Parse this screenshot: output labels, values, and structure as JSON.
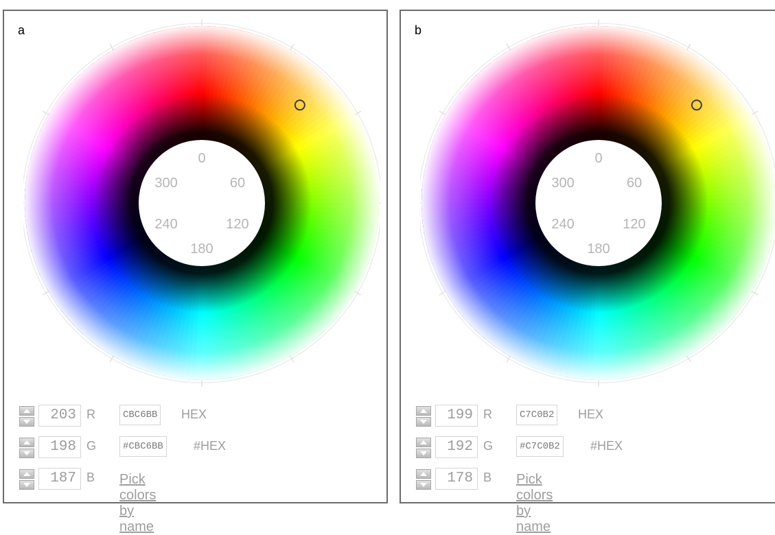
{
  "panels": [
    {
      "label": "a",
      "wheel": {
        "marker_hue_deg": 45,
        "degree_labels": [
          "0",
          "60",
          "120",
          "180",
          "240",
          "300"
        ]
      },
      "rows": [
        {
          "value": "203",
          "channel": "R",
          "hex_value": "CBC6BB",
          "hex_label": "HEX"
        },
        {
          "value": "198",
          "channel": "G",
          "hex_value": "#CBC6BB",
          "hex_label": "#HEX"
        },
        {
          "value": "187",
          "channel": "B"
        }
      ],
      "link_label": "Pick colors by name"
    },
    {
      "label": "b",
      "wheel": {
        "marker_hue_deg": 45,
        "degree_labels": [
          "0",
          "60",
          "120",
          "180",
          "240",
          "300"
        ]
      },
      "rows": [
        {
          "value": "199",
          "channel": "R",
          "hex_value": "C7C0B2",
          "hex_label": "HEX"
        },
        {
          "value": "192",
          "channel": "G",
          "hex_value": "#C7C0B2",
          "hex_label": "#HEX"
        },
        {
          "value": "178",
          "channel": "B"
        }
      ],
      "link_label": "Pick colors by name"
    }
  ]
}
